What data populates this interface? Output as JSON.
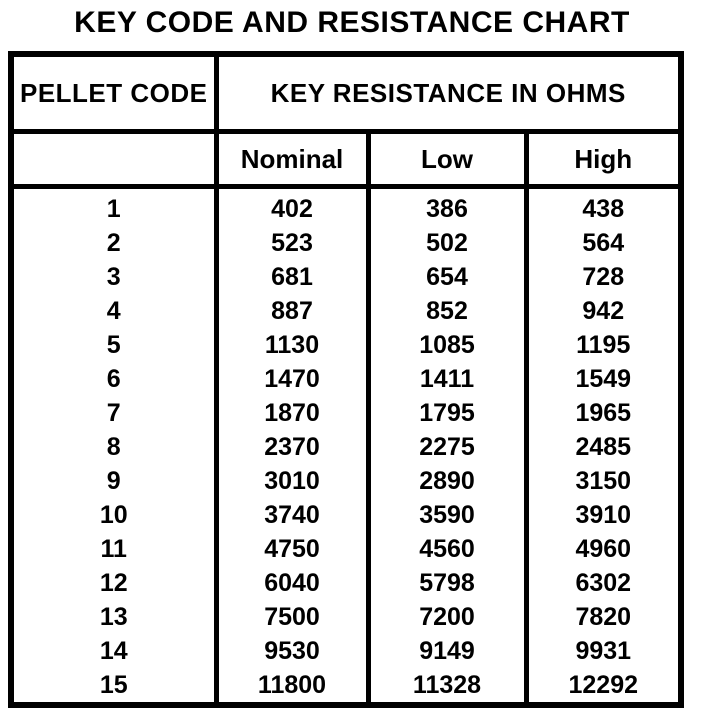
{
  "chart_data": {
    "type": "table",
    "title": "KEY CODE AND RESISTANCE CHART",
    "group_header": "KEY RESISTANCE IN OHMS",
    "columns": [
      "PELLET CODE",
      "Nominal",
      "Low",
      "High"
    ],
    "units": "ohms",
    "rows": [
      [
        1,
        402,
        386,
        438
      ],
      [
        2,
        523,
        502,
        564
      ],
      [
        3,
        681,
        654,
        728
      ],
      [
        4,
        887,
        852,
        942
      ],
      [
        5,
        1130,
        1085,
        1195
      ],
      [
        6,
        1470,
        1411,
        1549
      ],
      [
        7,
        1870,
        1795,
        1965
      ],
      [
        8,
        2370,
        2275,
        2485
      ],
      [
        9,
        3010,
        2890,
        3150
      ],
      [
        10,
        3740,
        3590,
        3910
      ],
      [
        11,
        4750,
        4560,
        4960
      ],
      [
        12,
        6040,
        5798,
        6302
      ],
      [
        13,
        7500,
        7200,
        7820
      ],
      [
        14,
        9530,
        9149,
        9931
      ],
      [
        15,
        11800,
        11328,
        12292
      ]
    ]
  },
  "colors": {
    "foreground": "#000000",
    "background": "#ffffff"
  }
}
